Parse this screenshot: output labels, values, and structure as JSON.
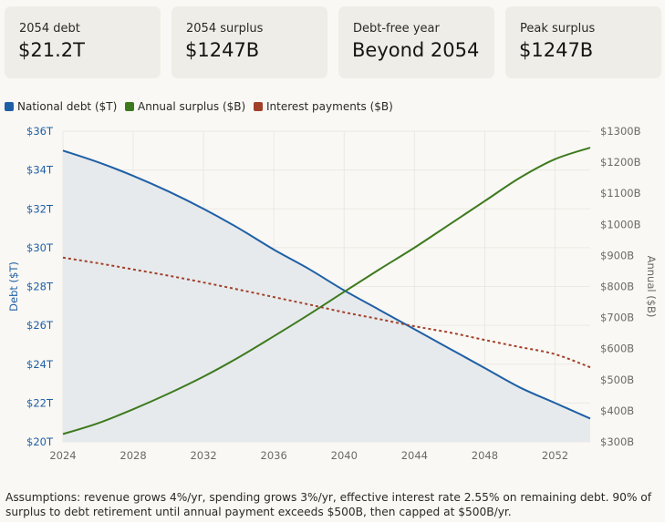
{
  "summary_cards": [
    {
      "label": "2054 debt",
      "value": "$21.2T"
    },
    {
      "label": "2054 surplus",
      "value": "$1247B"
    },
    {
      "label": "Debt-free year",
      "value": "Beyond 2054"
    },
    {
      "label": "Peak surplus",
      "value": "$1247B"
    }
  ],
  "legend": [
    {
      "label": "National debt ($T)",
      "color": "#1f5fa6"
    },
    {
      "label": "Annual surplus ($B)",
      "color": "#3d7a1e"
    },
    {
      "label": "Interest payments ($B)",
      "color": "#a2402a"
    }
  ],
  "chart_data": {
    "type": "line",
    "x": [
      2024,
      2026,
      2028,
      2030,
      2032,
      2034,
      2036,
      2038,
      2040,
      2042,
      2044,
      2046,
      2048,
      2050,
      2052,
      2054
    ],
    "x_ticks": [
      2024,
      2028,
      2032,
      2036,
      2040,
      2044,
      2048,
      2052
    ],
    "x_tick_labels": [
      "2024",
      "2028",
      "2032",
      "2036",
      "2040",
      "2044",
      "2048",
      "2052"
    ],
    "y_left": {
      "label": "Debt ($T)",
      "range": [
        20,
        36
      ],
      "ticks": [
        20,
        22,
        24,
        26,
        28,
        30,
        32,
        34,
        36
      ],
      "tick_labels": [
        "$20T",
        "$22T",
        "$24T",
        "$26T",
        "$28T",
        "$30T",
        "$32T",
        "$34T",
        "$36T"
      ],
      "color": "#1f5fa6"
    },
    "y_right": {
      "label": "Annual ($B)",
      "range": [
        300,
        1300
      ],
      "ticks": [
        300,
        400,
        500,
        600,
        700,
        800,
        900,
        1000,
        1100,
        1200,
        1300
      ],
      "tick_labels": [
        "$300B",
        "$400B",
        "$500B",
        "$600B",
        "$700B",
        "$800B",
        "$900B",
        "$1000B",
        "$1100B",
        "$1200B",
        "$1300B"
      ],
      "color": "#6b6a66"
    },
    "series": [
      {
        "name": "National debt ($T)",
        "axis": "left",
        "color": "#1f5fa6",
        "fill": "#e6eaec",
        "style": "solid",
        "values": [
          35.0,
          34.4,
          33.7,
          32.9,
          32.0,
          31.0,
          29.9,
          28.9,
          27.8,
          26.8,
          25.8,
          24.8,
          23.8,
          22.8,
          22.0,
          21.2
        ]
      },
      {
        "name": "Annual surplus ($B)",
        "axis": "right",
        "color": "#3d7a1e",
        "style": "solid",
        "values": [
          325,
          360,
          405,
          455,
          510,
          572,
          640,
          710,
          783,
          855,
          925,
          1000,
          1075,
          1150,
          1210,
          1247
        ]
      },
      {
        "name": "Interest payments ($B)",
        "axis": "right",
        "color": "#a2402a",
        "style": "dashed",
        "values": [
          893,
          875,
          855,
          835,
          813,
          790,
          766,
          742,
          717,
          695,
          672,
          652,
          628,
          605,
          582,
          540
        ]
      }
    ]
  },
  "assumptions": "Assumptions: revenue grows 4%/yr, spending grows 3%/yr, effective interest rate 2.55% on remaining debt. 90% of surplus to debt retirement until annual payment exceeds $500B, then capped at $500B/yr."
}
